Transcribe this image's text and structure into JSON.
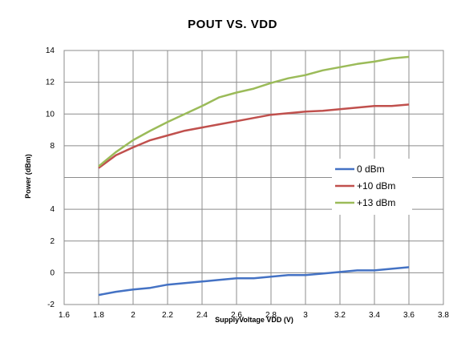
{
  "chart_data": {
    "type": "line",
    "title": "POUT VS. VDD",
    "xlabel": "SupplyVoltage VDD (V)",
    "ylabel": "Power (dBm)",
    "xlim": [
      1.6,
      3.8
    ],
    "ylim": [
      -2,
      14
    ],
    "x_ticks": [
      "1.6",
      "1.8",
      "2",
      "2.2",
      "2.4",
      "2.6",
      "2.8",
      "3",
      "3.2",
      "3.4",
      "3.6",
      "3.8"
    ],
    "y_ticks": [
      "-2",
      "0",
      "2",
      "4",
      "",
      "8",
      "10",
      "12",
      "14"
    ],
    "grid": true,
    "legend_position": "right",
    "x": [
      1.8,
      1.9,
      2.0,
      2.1,
      2.2,
      2.3,
      2.4,
      2.5,
      2.6,
      2.7,
      2.8,
      2.9,
      3.0,
      3.1,
      3.2,
      3.3,
      3.4,
      3.5,
      3.6
    ],
    "series": [
      {
        "name": "0 dBm",
        "color": "#4472C4",
        "values": [
          -1.4,
          -1.2,
          -1.05,
          -0.95,
          -0.75,
          -0.65,
          -0.55,
          -0.45,
          -0.35,
          -0.35,
          -0.25,
          -0.15,
          -0.15,
          -0.05,
          0.05,
          0.15,
          0.15,
          0.25,
          0.35
        ]
      },
      {
        "name": "+10 dBm",
        "color": "#C0504D",
        "values": [
          6.6,
          7.4,
          7.9,
          8.35,
          8.65,
          8.95,
          9.15,
          9.35,
          9.55,
          9.75,
          9.95,
          10.05,
          10.15,
          10.2,
          10.3,
          10.4,
          10.5,
          10.5,
          10.6
        ]
      },
      {
        "name": "+13 dBm",
        "color": "#9BBB59",
        "values": [
          6.7,
          7.6,
          8.35,
          8.95,
          9.5,
          10.0,
          10.5,
          11.05,
          11.35,
          11.6,
          11.95,
          12.25,
          12.45,
          12.75,
          12.95,
          13.15,
          13.3,
          13.5,
          13.6
        ]
      }
    ]
  }
}
